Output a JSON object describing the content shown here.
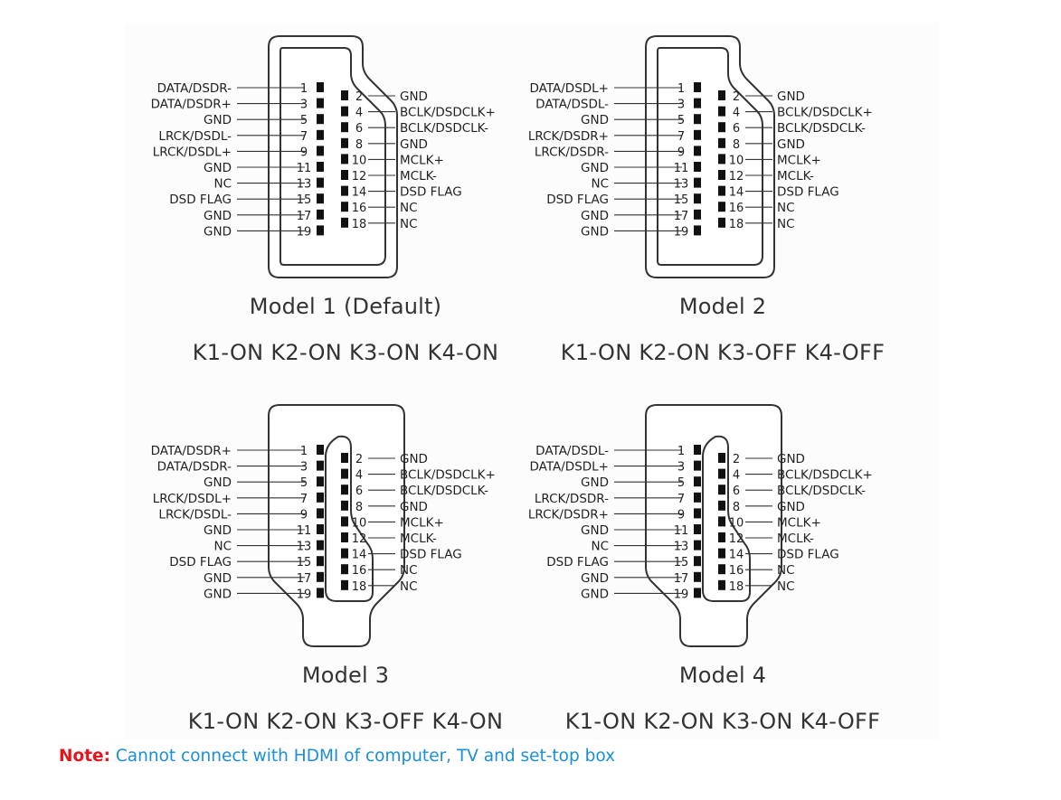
{
  "colors": {
    "note_label": "#e8141c",
    "note_text": "#1a8fd8",
    "diagram_text": "#333333"
  },
  "models": [
    {
      "title": "Model 1 (Default)",
      "switches": "K1-ON K2-ON K3-ON K4-ON",
      "connector_orientation": "wide-top",
      "left_pins": [
        {
          "num": "1",
          "label": "DATA/DSDR-"
        },
        {
          "num": "3",
          "label": "DATA/DSDR+"
        },
        {
          "num": "5",
          "label": "GND"
        },
        {
          "num": "7",
          "label": "LRCK/DSDL-"
        },
        {
          "num": "9",
          "label": "LRCK/DSDL+"
        },
        {
          "num": "11",
          "label": "GND"
        },
        {
          "num": "13",
          "label": "NC"
        },
        {
          "num": "15",
          "label": "DSD FLAG"
        },
        {
          "num": "17",
          "label": "GND"
        },
        {
          "num": "19",
          "label": "GND"
        }
      ],
      "right_pins": [
        {
          "num": "2",
          "label": "GND"
        },
        {
          "num": "4",
          "label": "BCLK/DSDCLK+"
        },
        {
          "num": "6",
          "label": "BCLK/DSDCLK-"
        },
        {
          "num": "8",
          "label": "GND"
        },
        {
          "num": "10",
          "label": "MCLK+"
        },
        {
          "num": "12",
          "label": "MCLK-"
        },
        {
          "num": "14",
          "label": "DSD FLAG"
        },
        {
          "num": "16",
          "label": "NC"
        },
        {
          "num": "18",
          "label": "NC"
        }
      ]
    },
    {
      "title": "Model 2",
      "switches": "K1-ON K2-ON K3-OFF K4-OFF",
      "connector_orientation": "wide-top",
      "left_pins": [
        {
          "num": "1",
          "label": "DATA/DSDL+"
        },
        {
          "num": "3",
          "label": "DATA/DSDL-"
        },
        {
          "num": "5",
          "label": "GND"
        },
        {
          "num": "7",
          "label": "LRCK/DSDR+"
        },
        {
          "num": "9",
          "label": "LRCK/DSDR-"
        },
        {
          "num": "11",
          "label": "GND"
        },
        {
          "num": "13",
          "label": "NC"
        },
        {
          "num": "15",
          "label": "DSD FLAG"
        },
        {
          "num": "17",
          "label": "GND"
        },
        {
          "num": "19",
          "label": "GND"
        }
      ],
      "right_pins": [
        {
          "num": "2",
          "label": "GND"
        },
        {
          "num": "4",
          "label": "BCLK/DSDCLK+"
        },
        {
          "num": "6",
          "label": "BCLK/DSDCLK-"
        },
        {
          "num": "8",
          "label": "GND"
        },
        {
          "num": "10",
          "label": "MCLK+"
        },
        {
          "num": "12",
          "label": "MCLK-"
        },
        {
          "num": "14",
          "label": "DSD FLAG"
        },
        {
          "num": "16",
          "label": "NC"
        },
        {
          "num": "18",
          "label": "NC"
        }
      ]
    },
    {
      "title": "Model 3",
      "switches": "K1-ON K2-ON K3-OFF K4-ON",
      "connector_orientation": "wide-bottom",
      "left_pins": [
        {
          "num": "1",
          "label": "DATA/DSDR+"
        },
        {
          "num": "3",
          "label": "DATA/DSDR-"
        },
        {
          "num": "5",
          "label": "GND"
        },
        {
          "num": "7",
          "label": "LRCK/DSDL+"
        },
        {
          "num": "9",
          "label": "LRCK/DSDL-"
        },
        {
          "num": "11",
          "label": "GND"
        },
        {
          "num": "13",
          "label": "NC"
        },
        {
          "num": "15",
          "label": "DSD FLAG"
        },
        {
          "num": "17",
          "label": "GND"
        },
        {
          "num": "19",
          "label": "GND"
        }
      ],
      "right_pins": [
        {
          "num": "2",
          "label": "GND"
        },
        {
          "num": "4",
          "label": "BCLK/DSDCLK+"
        },
        {
          "num": "6",
          "label": "BCLK/DSDCLK-"
        },
        {
          "num": "8",
          "label": "GND"
        },
        {
          "num": "10",
          "label": "MCLK+"
        },
        {
          "num": "12",
          "label": "MCLK-"
        },
        {
          "num": "14",
          "label": "DSD FLAG"
        },
        {
          "num": "16",
          "label": "NC"
        },
        {
          "num": "18",
          "label": "NC"
        }
      ]
    },
    {
      "title": "Model 4",
      "switches": "K1-ON K2-ON K3-ON K4-OFF",
      "connector_orientation": "wide-bottom",
      "left_pins": [
        {
          "num": "1",
          "label": "DATA/DSDL-"
        },
        {
          "num": "3",
          "label": "DATA/DSDL+"
        },
        {
          "num": "5",
          "label": "GND"
        },
        {
          "num": "7",
          "label": "LRCK/DSDR-"
        },
        {
          "num": "9",
          "label": "LRCK/DSDR+"
        },
        {
          "num": "11",
          "label": "GND"
        },
        {
          "num": "13",
          "label": "NC"
        },
        {
          "num": "15",
          "label": "DSD FLAG"
        },
        {
          "num": "17",
          "label": "GND"
        },
        {
          "num": "19",
          "label": "GND"
        }
      ],
      "right_pins": [
        {
          "num": "2",
          "label": "GND"
        },
        {
          "num": "4",
          "label": "BCLK/DSDCLK+"
        },
        {
          "num": "6",
          "label": "BCLK/DSDCLK-"
        },
        {
          "num": "8",
          "label": "GND"
        },
        {
          "num": "10",
          "label": "MCLK+"
        },
        {
          "num": "12",
          "label": "MCLK-"
        },
        {
          "num": "14",
          "label": "DSD FLAG"
        },
        {
          "num": "16",
          "label": "NC"
        },
        {
          "num": "18",
          "label": "NC"
        }
      ]
    }
  ],
  "note": {
    "label": "Note:",
    "text": "Cannot connect with HDMI of computer, TV and set-top box"
  }
}
